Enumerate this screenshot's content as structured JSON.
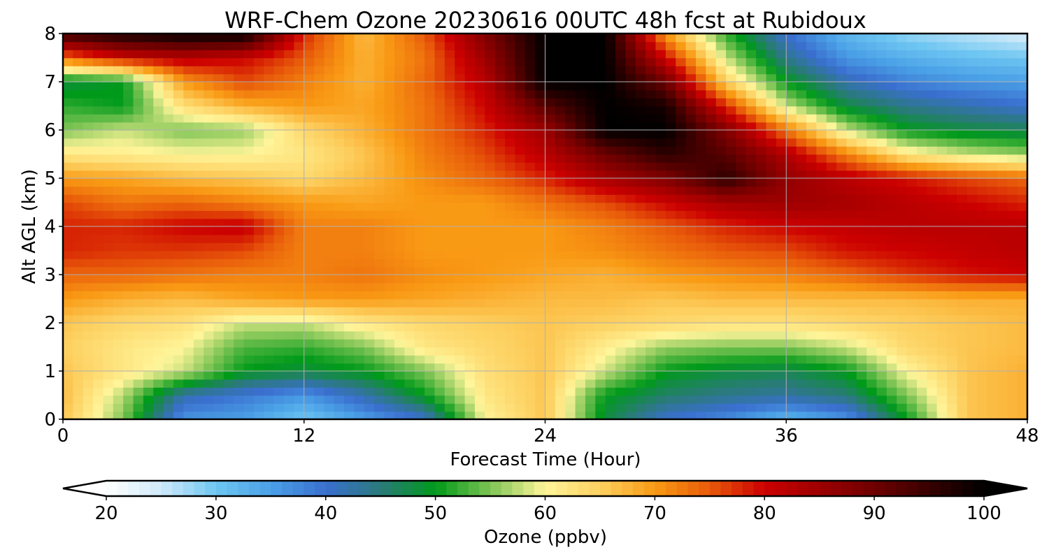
{
  "chart_data": {
    "type": "heatmap",
    "title": "WRF-Chem Ozone  20230616 00UTC 48h fcst at Rubidoux",
    "xlabel": "Forecast Time (Hour)",
    "ylabel": "Alt AGL (km)",
    "xlim": [
      0,
      48
    ],
    "ylim": [
      0,
      8
    ],
    "xticks": [
      "0",
      "12",
      "24",
      "36",
      "48"
    ],
    "yticks": [
      "0",
      "1",
      "2",
      "3",
      "4",
      "5",
      "6",
      "7",
      "8"
    ],
    "grid": true,
    "x": [
      0,
      3,
      6,
      9,
      12,
      15,
      18,
      21,
      24,
      27,
      30,
      33,
      36,
      39,
      42,
      45,
      48
    ],
    "y": [
      0,
      0.5,
      1,
      1.5,
      2,
      2.5,
      3,
      3.5,
      4,
      4.5,
      5,
      5.5,
      6,
      6.5,
      7,
      7.5,
      8
    ],
    "values": [
      [
        66,
        55,
        36,
        35,
        30,
        35,
        40,
        60,
        66,
        48,
        40,
        37,
        32,
        36,
        50,
        66,
        68
      ],
      [
        67,
        57,
        42,
        39,
        36,
        42,
        50,
        62,
        66,
        50,
        46,
        44,
        43,
        45,
        55,
        66,
        68
      ],
      [
        66,
        62,
        58,
        50,
        48,
        50,
        55,
        63,
        66,
        58,
        50,
        48,
        47,
        50,
        60,
        66,
        68
      ],
      [
        65,
        62,
        60,
        53,
        52,
        55,
        62,
        64,
        66,
        61,
        56,
        55,
        55,
        58,
        64,
        66,
        67
      ],
      [
        66,
        64,
        63,
        58,
        58,
        62,
        64,
        65,
        66,
        65,
        64,
        63,
        63,
        64,
        65,
        66,
        67
      ],
      [
        70,
        68,
        67,
        69,
        70,
        70,
        69,
        68,
        67,
        67,
        66,
        67,
        67,
        67,
        67,
        68,
        68
      ],
      [
        74,
        74,
        73,
        72,
        72,
        73,
        71,
        70,
        69,
        68,
        70,
        71,
        72,
        74,
        77,
        79,
        80
      ],
      [
        78,
        77,
        77,
        76,
        72,
        72,
        70,
        70,
        70,
        71,
        73,
        75,
        76,
        79,
        80,
        81,
        82
      ],
      [
        78,
        78,
        80,
        81,
        72,
        72,
        70,
        70,
        70,
        72,
        75,
        78,
        80,
        81,
        82,
        82,
        82
      ],
      [
        76,
        73,
        74,
        72,
        70,
        69,
        70,
        70,
        73,
        76,
        80,
        84,
        85,
        84,
        82,
        80,
        78
      ],
      [
        70,
        69,
        67,
        66,
        64,
        67,
        71,
        74,
        78,
        84,
        88,
        96,
        86,
        82,
        79,
        76,
        74
      ],
      [
        62,
        61,
        60,
        60,
        62,
        66,
        72,
        76,
        82,
        90,
        96,
        92,
        83,
        72,
        62,
        58,
        56
      ],
      [
        55,
        58,
        55,
        56,
        64,
        68,
        73,
        78,
        85,
        100,
        100,
        88,
        73,
        58,
        50,
        48,
        47
      ],
      [
        52,
        50,
        63,
        68,
        70,
        69,
        73,
        80,
        92,
        100,
        98,
        78,
        58,
        48,
        44,
        42,
        40
      ],
      [
        48,
        50,
        70,
        76,
        72,
        68,
        74,
        82,
        100,
        100,
        90,
        65,
        50,
        42,
        38,
        36,
        35
      ],
      [
        73,
        80,
        82,
        80,
        75,
        68,
        73,
        85,
        100,
        100,
        80,
        58,
        44,
        36,
        33,
        31,
        30
      ],
      [
        95,
        98,
        100,
        100,
        78,
        67,
        75,
        88,
        100,
        100,
        70,
        52,
        40,
        32,
        28,
        26,
        24
      ]
    ],
    "colorbar": {
      "label": "Ozone  (ppbv)",
      "min": 20,
      "max": 100,
      "extend": "both",
      "ticks": [
        "20",
        "30",
        "40",
        "50",
        "60",
        "70",
        "80",
        "90",
        "100"
      ],
      "stops": [
        [
          20,
          "#ffffff"
        ],
        [
          25,
          "#cfeaf9"
        ],
        [
          30,
          "#6ec6f2"
        ],
        [
          35,
          "#4aa0e6"
        ],
        [
          40,
          "#3a6fcf"
        ],
        [
          45,
          "#2a7a7a"
        ],
        [
          50,
          "#009a1a"
        ],
        [
          55,
          "#7dc454"
        ],
        [
          60,
          "#fff59a"
        ],
        [
          65,
          "#fdd060"
        ],
        [
          70,
          "#f99a14"
        ],
        [
          75,
          "#e85a0a"
        ],
        [
          80,
          "#cc0000"
        ],
        [
          90,
          "#6e0000"
        ],
        [
          100,
          "#000000"
        ]
      ]
    }
  }
}
